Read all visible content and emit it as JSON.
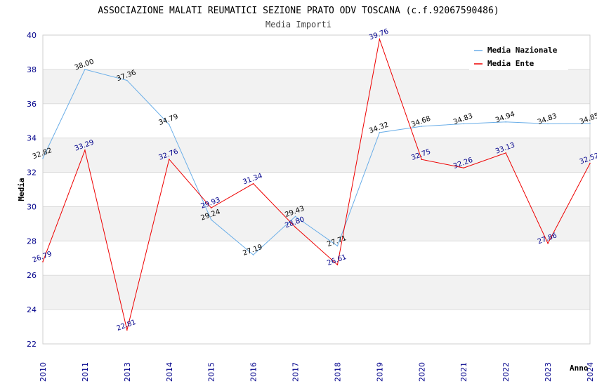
{
  "chart_data": {
    "type": "line",
    "title": "ASSOCIAZIONE MALATI REUMATICI SEZIONE PRATO ODV TOSCANA (c.f.92067590486)",
    "subtitle": "Media Importi",
    "xlabel": "Anno",
    "ylabel": "Media",
    "ylim": [
      22,
      40
    ],
    "yticks": [
      "22",
      "24",
      "26",
      "28",
      "30",
      "32",
      "34",
      "36",
      "38",
      "40"
    ],
    "categories": [
      "2010",
      "2011",
      "2013",
      "2014",
      "2015",
      "2016",
      "2017",
      "2018",
      "2019",
      "2020",
      "2021",
      "2022",
      "2023",
      "2024"
    ],
    "series": [
      {
        "name": "Media Nazionale",
        "color": "#6aaee8",
        "label_color": "#000000",
        "values": [
          32.82,
          38.0,
          37.36,
          34.79,
          29.24,
          27.19,
          29.43,
          27.71,
          34.32,
          34.68,
          34.83,
          34.94,
          34.83,
          34.85
        ],
        "labels": [
          "32.82",
          "38.00",
          "37.36",
          "34.79",
          "29.24",
          "27.19",
          "29.43",
          "27.71",
          "34.32",
          "34.68",
          "34.83",
          "34.94",
          "34.83",
          "34.85"
        ]
      },
      {
        "name": "Media Ente",
        "color": "#ee0000",
        "label_color": "#00008b",
        "values": [
          26.79,
          33.29,
          22.81,
          32.76,
          29.93,
          31.34,
          28.8,
          26.61,
          39.76,
          32.75,
          32.26,
          33.13,
          27.86,
          32.52
        ],
        "labels": [
          "26.79",
          "33.29",
          "22.81",
          "32.76",
          "29.93",
          "31.34",
          "28.80",
          "26.61",
          "39.76",
          "32.75",
          "32.26",
          "33.13",
          "27.86",
          "32.52"
        ]
      }
    ],
    "legend": "top-right",
    "grid": true,
    "band_color": "#f2f2f2",
    "grid_color": "#dcdcdc"
  }
}
